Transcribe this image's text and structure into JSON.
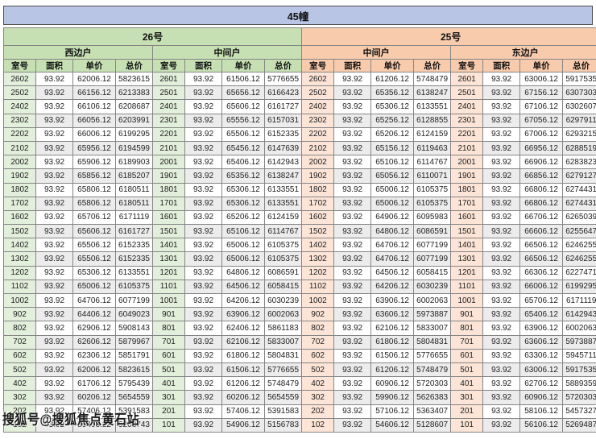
{
  "title": "45幢",
  "watermark": "搜狐号@搜狐焦点黄石站",
  "columns": [
    "室号",
    "面积",
    "单价",
    "总价"
  ],
  "sections": [
    {
      "label": "26号",
      "theme": "green",
      "units": [
        "西边户",
        "中间户"
      ]
    },
    {
      "label": "25号",
      "theme": "orange",
      "units": [
        "中间户",
        "东边户"
      ]
    }
  ],
  "colors": {
    "title_bg": "#b8c5e4",
    "section_green": "#c6e0b4",
    "section_orange": "#f8cbad",
    "room_green": "#e2efda",
    "room_orange": "#fce4d6",
    "row_alt": "#ececec"
  },
  "rows": [
    [
      [
        "2602",
        "93.92",
        "62006.12",
        "5823615"
      ],
      [
        "2601",
        "93.92",
        "61506.12",
        "5776655"
      ],
      [
        "2602",
        "93.92",
        "61206.12",
        "5748479"
      ],
      [
        "2601",
        "93.92",
        "63006.12",
        "5917535"
      ]
    ],
    [
      [
        "2502",
        "93.92",
        "66156.12",
        "6213383"
      ],
      [
        "2501",
        "93.92",
        "65656.12",
        "6166423"
      ],
      [
        "2502",
        "93.92",
        "65356.12",
        "6138247"
      ],
      [
        "2501",
        "93.92",
        "67156.12",
        "6307303"
      ]
    ],
    [
      [
        "2402",
        "93.92",
        "66106.12",
        "6208687"
      ],
      [
        "2401",
        "93.92",
        "65606.12",
        "6161727"
      ],
      [
        "2402",
        "93.92",
        "65306.12",
        "6133551"
      ],
      [
        "2401",
        "93.92",
        "67106.12",
        "6302607"
      ]
    ],
    [
      [
        "2302",
        "93.92",
        "66056.12",
        "6203991"
      ],
      [
        "2301",
        "93.92",
        "65556.12",
        "6157031"
      ],
      [
        "2302",
        "93.92",
        "65256.12",
        "6128855"
      ],
      [
        "2301",
        "93.92",
        "67056.12",
        "6297911"
      ]
    ],
    [
      [
        "2202",
        "93.92",
        "66006.12",
        "6199295"
      ],
      [
        "2201",
        "93.92",
        "65506.12",
        "6152335"
      ],
      [
        "2202",
        "93.92",
        "65206.12",
        "6124159"
      ],
      [
        "2201",
        "93.92",
        "67006.12",
        "6293215"
      ]
    ],
    [
      [
        "2102",
        "93.92",
        "65956.12",
        "6194599"
      ],
      [
        "2101",
        "93.92",
        "65456.12",
        "6147639"
      ],
      [
        "2102",
        "93.92",
        "65156.12",
        "6119463"
      ],
      [
        "2101",
        "93.92",
        "66956.12",
        "6288519"
      ]
    ],
    [
      [
        "2002",
        "93.92",
        "65906.12",
        "6189903"
      ],
      [
        "2001",
        "93.92",
        "65406.12",
        "6142943"
      ],
      [
        "2002",
        "93.92",
        "65106.12",
        "6114767"
      ],
      [
        "2001",
        "93.92",
        "66906.12",
        "6283823"
      ]
    ],
    [
      [
        "1902",
        "93.92",
        "65856.12",
        "6185207"
      ],
      [
        "1901",
        "93.92",
        "65356.12",
        "6138247"
      ],
      [
        "1902",
        "93.92",
        "65056.12",
        "6110071"
      ],
      [
        "1901",
        "93.92",
        "66856.12",
        "6279127"
      ]
    ],
    [
      [
        "1802",
        "93.92",
        "65806.12",
        "6180511"
      ],
      [
        "1801",
        "93.92",
        "65306.12",
        "6133551"
      ],
      [
        "1802",
        "93.92",
        "65006.12",
        "6105375"
      ],
      [
        "1801",
        "93.92",
        "66806.12",
        "6274431"
      ]
    ],
    [
      [
        "1702",
        "93.92",
        "65806.12",
        "6180511"
      ],
      [
        "1701",
        "93.92",
        "65306.12",
        "6133551"
      ],
      [
        "1702",
        "93.92",
        "65006.12",
        "6105375"
      ],
      [
        "1701",
        "93.92",
        "66806.12",
        "6274431"
      ]
    ],
    [
      [
        "1602",
        "93.92",
        "65706.12",
        "6171119"
      ],
      [
        "1601",
        "93.92",
        "65206.12",
        "6124159"
      ],
      [
        "1602",
        "93.92",
        "64906.12",
        "6095983"
      ],
      [
        "1601",
        "93.92",
        "66706.12",
        "6265039"
      ]
    ],
    [
      [
        "1502",
        "93.92",
        "65606.12",
        "6161727"
      ],
      [
        "1501",
        "93.92",
        "65106.12",
        "6114767"
      ],
      [
        "1502",
        "93.92",
        "64806.12",
        "6086591"
      ],
      [
        "1501",
        "93.92",
        "66606.12",
        "6255647"
      ]
    ],
    [
      [
        "1402",
        "93.92",
        "65506.12",
        "6152335"
      ],
      [
        "1401",
        "93.92",
        "65006.12",
        "6105375"
      ],
      [
        "1402",
        "93.92",
        "64706.12",
        "6077199"
      ],
      [
        "1401",
        "93.92",
        "66506.12",
        "6246255"
      ]
    ],
    [
      [
        "1302",
        "93.92",
        "65506.12",
        "6152335"
      ],
      [
        "1301",
        "93.92",
        "65006.12",
        "6105375"
      ],
      [
        "1302",
        "93.92",
        "64706.12",
        "6077199"
      ],
      [
        "1301",
        "93.92",
        "66506.12",
        "6246255"
      ]
    ],
    [
      [
        "1202",
        "93.92",
        "65306.12",
        "6133551"
      ],
      [
        "1201",
        "93.92",
        "64806.12",
        "6086591"
      ],
      [
        "1202",
        "93.92",
        "64506.12",
        "6058415"
      ],
      [
        "1201",
        "93.92",
        "66306.12",
        "6227471"
      ]
    ],
    [
      [
        "1102",
        "93.92",
        "65006.12",
        "6105375"
      ],
      [
        "1101",
        "93.92",
        "64506.12",
        "6058415"
      ],
      [
        "1102",
        "93.92",
        "64206.12",
        "6030239"
      ],
      [
        "1101",
        "93.92",
        "66006.12",
        "6199295"
      ]
    ],
    [
      [
        "1002",
        "93.92",
        "64706.12",
        "6077199"
      ],
      [
        "1001",
        "93.92",
        "64206.12",
        "6030239"
      ],
      [
        "1002",
        "93.92",
        "63906.12",
        "6002063"
      ],
      [
        "1001",
        "93.92",
        "65706.12",
        "6171119"
      ]
    ],
    [
      [
        "902",
        "93.92",
        "64406.12",
        "6049023"
      ],
      [
        "901",
        "93.92",
        "63906.12",
        "6002063"
      ],
      [
        "902",
        "93.92",
        "63606.12",
        "5973887"
      ],
      [
        "901",
        "93.92",
        "65406.12",
        "6142943"
      ]
    ],
    [
      [
        "802",
        "93.92",
        "62906.12",
        "5908143"
      ],
      [
        "801",
        "93.92",
        "62406.12",
        "5861183"
      ],
      [
        "802",
        "93.92",
        "62106.12",
        "5833007"
      ],
      [
        "801",
        "93.92",
        "63906.12",
        "6002063"
      ]
    ],
    [
      [
        "702",
        "93.92",
        "62606.12",
        "5879967"
      ],
      [
        "701",
        "93.92",
        "62106.12",
        "5833007"
      ],
      [
        "702",
        "93.92",
        "61806.12",
        "5804831"
      ],
      [
        "701",
        "93.92",
        "63606.12",
        "5973887"
      ]
    ],
    [
      [
        "602",
        "93.92",
        "62306.12",
        "5851791"
      ],
      [
        "601",
        "93.92",
        "61806.12",
        "5804831"
      ],
      [
        "602",
        "93.92",
        "61506.12",
        "5776655"
      ],
      [
        "601",
        "93.92",
        "63306.12",
        "5945711"
      ]
    ],
    [
      [
        "502",
        "93.92",
        "62006.12",
        "5823615"
      ],
      [
        "501",
        "93.92",
        "61506.12",
        "5776655"
      ],
      [
        "502",
        "93.92",
        "61206.12",
        "5748479"
      ],
      [
        "501",
        "93.92",
        "63006.12",
        "5917535"
      ]
    ],
    [
      [
        "402",
        "93.92",
        "61706.12",
        "5795439"
      ],
      [
        "401",
        "93.92",
        "61206.12",
        "5748479"
      ],
      [
        "402",
        "93.92",
        "60906.12",
        "5720303"
      ],
      [
        "401",
        "93.92",
        "62706.12",
        "5889359"
      ]
    ],
    [
      [
        "302",
        "93.92",
        "60206.12",
        "5654559"
      ],
      [
        "301",
        "93.92",
        "60206.12",
        "5654559"
      ],
      [
        "302",
        "93.92",
        "59906.12",
        "5626383"
      ],
      [
        "301",
        "93.92",
        "60906.12",
        "5720303"
      ]
    ],
    [
      [
        "202",
        "93.92",
        "57406.12",
        "5391583"
      ],
      [
        "201",
        "93.92",
        "57406.12",
        "5391583"
      ],
      [
        "202",
        "93.92",
        "57106.12",
        "5363407"
      ],
      [
        "201",
        "93.92",
        "58106.12",
        "5457327"
      ]
    ],
    [
      [
        "102",
        "93.92",
        "55406.12",
        "5203743"
      ],
      [
        "101",
        "93.92",
        "54906.12",
        "5156783"
      ],
      [
        "102",
        "93.92",
        "54606.12",
        "5128607"
      ],
      [
        "101",
        "93.92",
        "56106.12",
        "5269487"
      ]
    ]
  ]
}
